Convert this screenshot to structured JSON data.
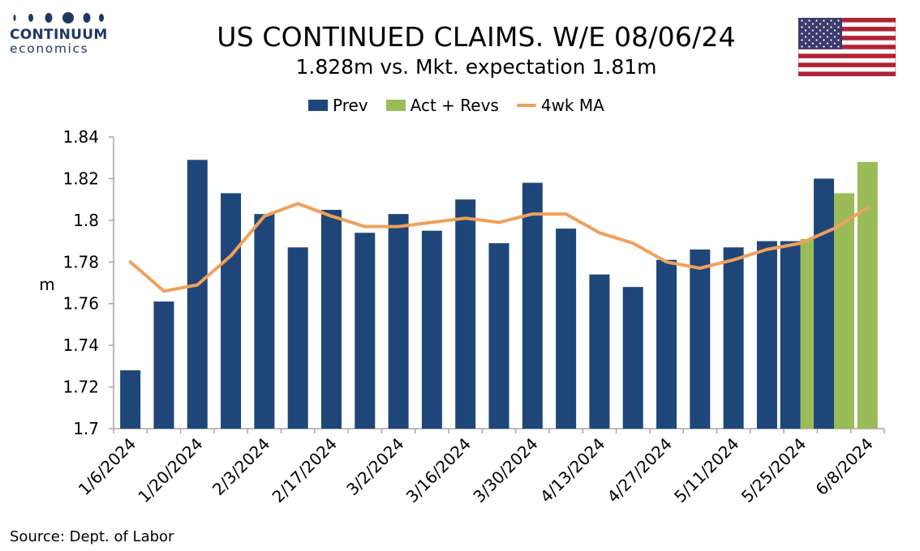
{
  "brand": {
    "name": "CONTINUUM",
    "sub": "economics"
  },
  "header": {
    "title": "US CONTINUED CLAIMS. W/E 08/06/24",
    "subtitle": "1.828m vs. Mkt. expectation 1.81m"
  },
  "flag_icon": "us-flag-icon",
  "source": "Source: Dept. of Labor",
  "colors": {
    "prev": "#1f4678",
    "act": "#9bbb59",
    "ma": "#f0a05a",
    "brand": "#1f3864"
  },
  "chart_data": {
    "type": "bar",
    "ylabel": "m",
    "xlabel": "",
    "ylim": [
      1.7,
      1.84
    ],
    "ytick_labels": [
      "1.7",
      "1.72",
      "1.74",
      "1.76",
      "1.78",
      "1.8",
      "1.82",
      "1.84"
    ],
    "legend": {
      "placement": "top-center",
      "entries": [
        "Prev",
        "Act + Revs",
        "4wk MA"
      ]
    },
    "grid": false,
    "categories": [
      "1/6/2024",
      "1/13/2024",
      "1/20/2024",
      "1/27/2024",
      "2/3/2024",
      "2/10/2024",
      "2/17/2024",
      "2/24/2024",
      "3/2/2024",
      "3/9/2024",
      "3/16/2024",
      "3/23/2024",
      "3/30/2024",
      "4/6/2024",
      "4/13/2024",
      "4/20/2024",
      "4/27/2024",
      "5/4/2024",
      "5/11/2024",
      "5/18/2024",
      "5/25/2024",
      "6/1/2024",
      "6/8/2024"
    ],
    "x_tick_labels": [
      "1/6/2024",
      "1/20/2024",
      "2/3/2024",
      "2/17/2024",
      "3/2/2024",
      "3/16/2024",
      "3/30/2024",
      "4/13/2024",
      "4/27/2024",
      "5/11/2024",
      "5/25/2024",
      "6/8/2024"
    ],
    "series": [
      {
        "name": "Prev",
        "type": "bar",
        "values": [
          1.728,
          1.761,
          1.829,
          1.813,
          1.803,
          1.787,
          1.805,
          1.794,
          1.803,
          1.795,
          1.81,
          1.789,
          1.818,
          1.796,
          1.774,
          1.768,
          1.781,
          1.786,
          1.787,
          1.79,
          1.79,
          1.82,
          null
        ]
      },
      {
        "name": "Act + Revs",
        "type": "bar",
        "values": [
          null,
          null,
          null,
          null,
          null,
          null,
          null,
          null,
          null,
          null,
          null,
          null,
          null,
          null,
          null,
          null,
          null,
          null,
          null,
          null,
          1.791,
          1.813,
          1.828
        ]
      },
      {
        "name": "4wk MA",
        "type": "line",
        "values": [
          1.78,
          1.766,
          1.769,
          1.783,
          1.802,
          1.808,
          1.802,
          1.797,
          1.797,
          1.799,
          1.801,
          1.799,
          1.803,
          1.803,
          1.794,
          1.789,
          1.78,
          1.777,
          1.781,
          1.786,
          1.789,
          1.796,
          1.806
        ]
      }
    ]
  }
}
